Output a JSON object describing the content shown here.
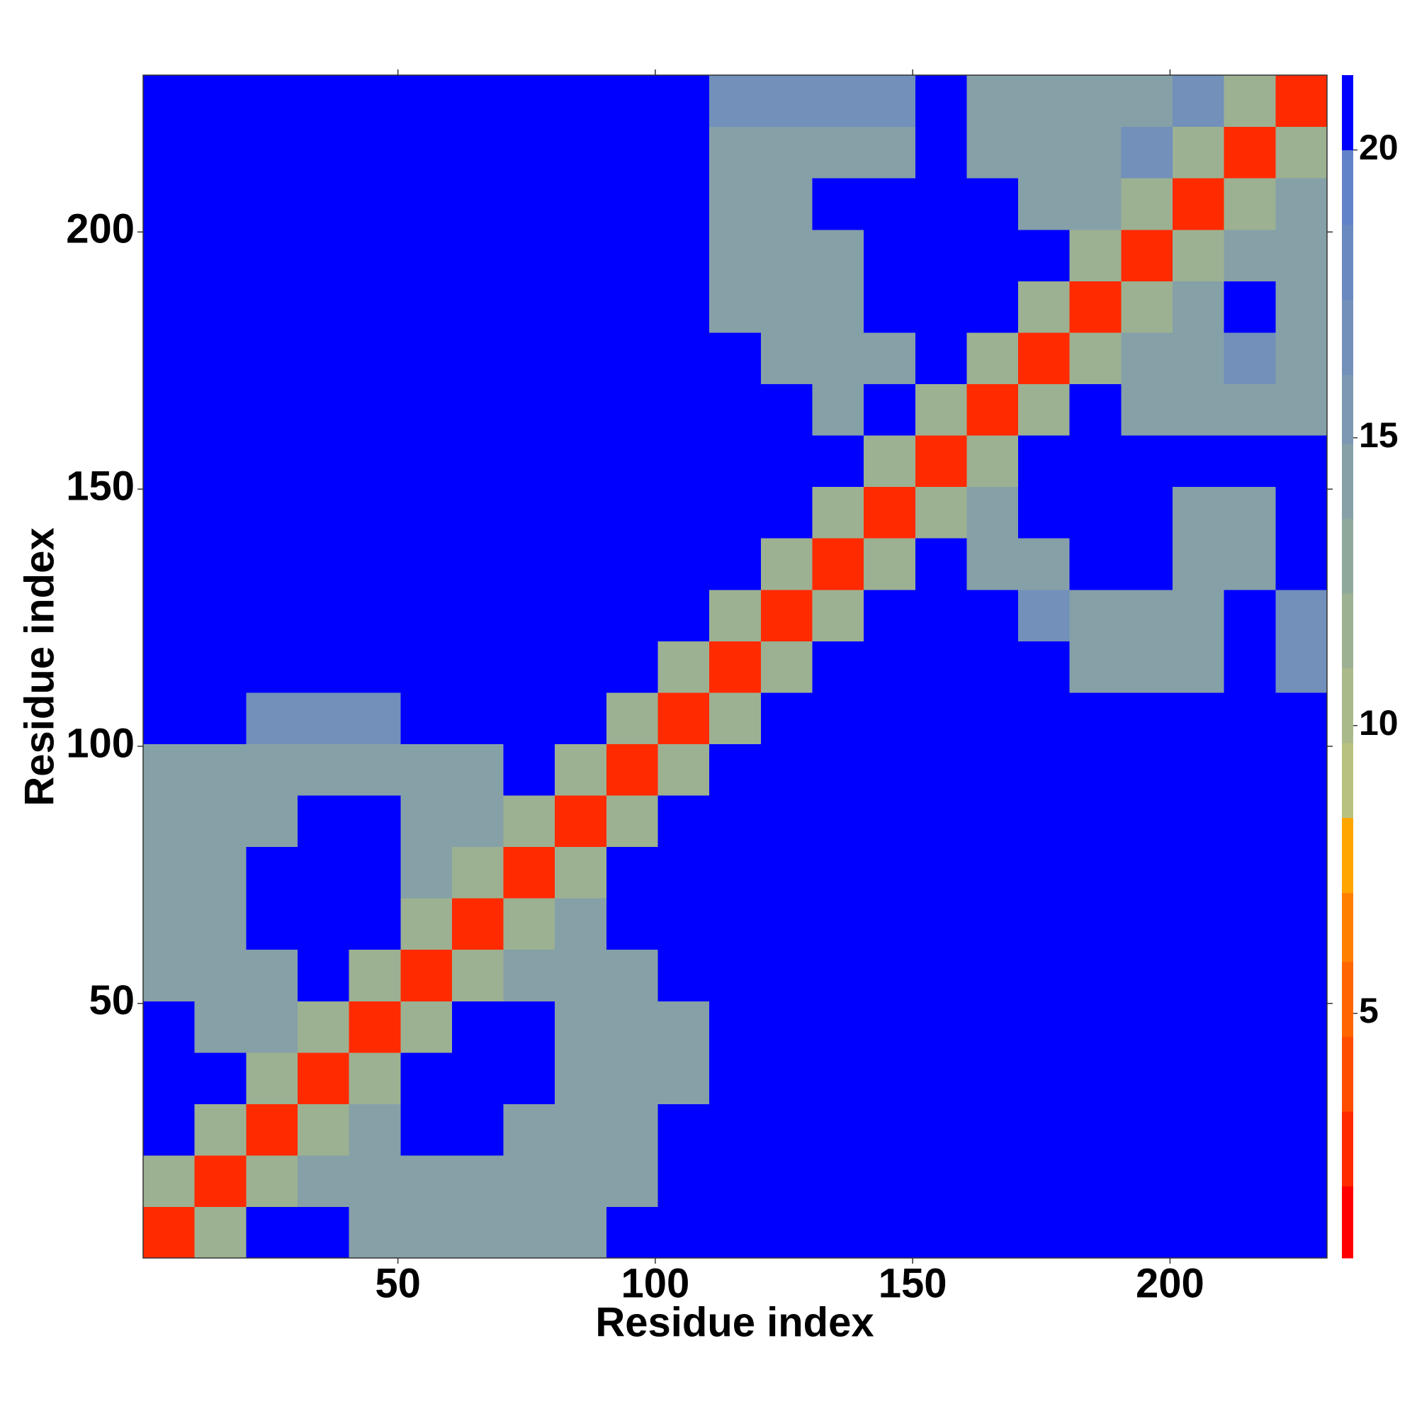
{
  "chart_data": {
    "type": "heatmap",
    "xlabel": "Residue index",
    "ylabel": "Residue index",
    "x": [
      5.5,
      15.5,
      25.5,
      35.5,
      45.5,
      55.5,
      65.5,
      75.5,
      85.5,
      95.5,
      105.5,
      115.5,
      125.5,
      135.5,
      145.5,
      155.5,
      165.5,
      175.5,
      185.5,
      195.5,
      205.5,
      215.5,
      225.5
    ],
    "y": [
      5.5,
      15.5,
      25.5,
      35.5,
      45.5,
      55.5,
      65.5,
      75.5,
      85.5,
      95.5,
      105.5,
      115.5,
      125.5,
      135.5,
      145.5,
      155.5,
      165.5,
      175.5,
      185.5,
      195.5,
      205.5,
      215.5,
      225.5
    ],
    "z": [
      [
        3,
        12,
        21,
        21,
        14,
        14,
        14,
        14,
        14,
        21,
        21,
        21,
        21,
        21,
        21,
        21,
        21,
        21,
        21,
        21,
        21,
        21,
        21
      ],
      [
        12,
        3,
        12,
        14,
        14,
        14,
        14,
        14,
        14,
        14,
        21,
        21,
        21,
        21,
        21,
        21,
        21,
        21,
        21,
        21,
        21,
        21,
        21
      ],
      [
        21,
        12,
        3,
        12,
        14,
        21,
        21,
        14,
        14,
        14,
        21,
        21,
        21,
        21,
        21,
        21,
        21,
        21,
        21,
        21,
        21,
        21,
        21
      ],
      [
        21,
        21,
        12,
        3,
        12,
        21,
        21,
        21,
        14,
        14,
        14,
        21,
        21,
        21,
        21,
        21,
        21,
        21,
        21,
        21,
        21,
        21,
        21
      ],
      [
        21,
        14,
        14,
        12,
        3,
        12,
        21,
        21,
        14,
        14,
        14,
        21,
        21,
        21,
        21,
        21,
        21,
        21,
        21,
        21,
        21,
        21,
        21
      ],
      [
        14,
        14,
        14,
        21,
        12,
        3,
        12,
        14,
        14,
        14,
        21,
        21,
        21,
        21,
        21,
        21,
        21,
        21,
        21,
        21,
        21,
        21,
        21
      ],
      [
        14,
        14,
        21,
        21,
        21,
        12,
        3,
        12,
        14,
        21,
        21,
        21,
        21,
        21,
        21,
        21,
        21,
        21,
        21,
        21,
        21,
        21,
        21
      ],
      [
        14,
        14,
        21,
        21,
        21,
        14,
        12,
        3,
        12,
        21,
        21,
        21,
        21,
        21,
        21,
        21,
        21,
        21,
        21,
        21,
        21,
        21,
        21
      ],
      [
        14,
        14,
        14,
        21,
        21,
        14,
        14,
        12,
        3,
        12,
        21,
        21,
        21,
        21,
        21,
        21,
        21,
        21,
        21,
        21,
        21,
        21,
        21
      ],
      [
        14,
        14,
        14,
        14,
        14,
        14,
        14,
        21,
        12,
        3,
        12,
        21,
        21,
        21,
        21,
        21,
        21,
        21,
        21,
        21,
        21,
        21,
        21
      ],
      [
        21,
        21,
        17,
        17,
        17,
        21,
        21,
        21,
        21,
        12,
        3,
        12,
        21,
        21,
        21,
        21,
        21,
        21,
        21,
        21,
        21,
        21,
        21
      ],
      [
        21,
        21,
        21,
        21,
        21,
        21,
        21,
        21,
        21,
        21,
        12,
        3,
        12,
        21,
        21,
        21,
        21,
        21,
        14,
        14,
        14,
        21,
        17
      ],
      [
        21,
        21,
        21,
        21,
        21,
        21,
        21,
        21,
        21,
        21,
        21,
        12,
        3,
        12,
        21,
        21,
        21,
        17,
        14,
        14,
        14,
        21,
        17
      ],
      [
        21,
        21,
        21,
        21,
        21,
        21,
        21,
        21,
        21,
        21,
        21,
        21,
        12,
        3,
        12,
        21,
        14,
        14,
        21,
        21,
        14,
        14,
        21
      ],
      [
        21,
        21,
        21,
        21,
        21,
        21,
        21,
        21,
        21,
        21,
        21,
        21,
        21,
        12,
        3,
        12,
        14,
        21,
        21,
        21,
        14,
        14,
        21
      ],
      [
        21,
        21,
        21,
        21,
        21,
        21,
        21,
        21,
        21,
        21,
        21,
        21,
        21,
        21,
        12,
        3,
        12,
        21,
        21,
        21,
        21,
        21,
        21
      ],
      [
        21,
        21,
        21,
        21,
        21,
        21,
        21,
        21,
        21,
        21,
        21,
        21,
        21,
        14,
        21,
        12,
        3,
        12,
        21,
        14,
        14,
        14,
        14
      ],
      [
        21,
        21,
        21,
        21,
        21,
        21,
        21,
        21,
        21,
        21,
        21,
        21,
        14,
        14,
        14,
        21,
        12,
        3,
        12,
        14,
        14,
        17,
        14
      ],
      [
        21,
        21,
        21,
        21,
        21,
        21,
        21,
        21,
        21,
        21,
        21,
        14,
        14,
        14,
        21,
        21,
        21,
        12,
        3,
        12,
        14,
        21,
        14
      ],
      [
        21,
        21,
        21,
        21,
        21,
        21,
        21,
        21,
        21,
        21,
        21,
        14,
        14,
        14,
        21,
        21,
        21,
        21,
        12,
        3,
        12,
        14,
        14
      ],
      [
        21,
        21,
        21,
        21,
        21,
        21,
        21,
        21,
        21,
        21,
        21,
        14,
        14,
        21,
        21,
        21,
        21,
        14,
        14,
        12,
        3,
        12,
        14
      ],
      [
        21,
        21,
        21,
        21,
        21,
        21,
        21,
        21,
        21,
        21,
        21,
        14,
        14,
        14,
        14,
        21,
        14,
        14,
        14,
        17,
        12,
        3,
        12
      ],
      [
        21,
        21,
        21,
        21,
        21,
        21,
        21,
        21,
        21,
        21,
        21,
        17,
        17,
        17,
        17,
        21,
        14,
        14,
        14,
        14,
        17,
        12,
        3
      ]
    ],
    "xlim": [
      0.5,
      230.5
    ],
    "ylim": [
      0.5,
      230.5
    ],
    "xticks": [
      50,
      100,
      150,
      200
    ],
    "yticks": [
      50,
      100,
      150,
      200
    ],
    "colorbar": {
      "levels": [
        0.75,
        2,
        3.3,
        4.6,
        5.9,
        7.1,
        8.4,
        9.7,
        11,
        12.3,
        13.6,
        14.9,
        16.1,
        17.4,
        18.7,
        20,
        21.3
      ],
      "colors": [
        "#ff0000",
        "#ff2a00",
        "#ff4d00",
        "#ff6600",
        "#ff8000",
        "#ffa500",
        "#b8c27e",
        "#a9b98a",
        "#9cb192",
        "#8fa89c",
        "#86a0a8",
        "#7c98b2",
        "#7290ba",
        "#6a89c0",
        "#6282c8",
        "#0000ff"
      ],
      "ticks": [
        5,
        10,
        15,
        20
      ]
    }
  }
}
